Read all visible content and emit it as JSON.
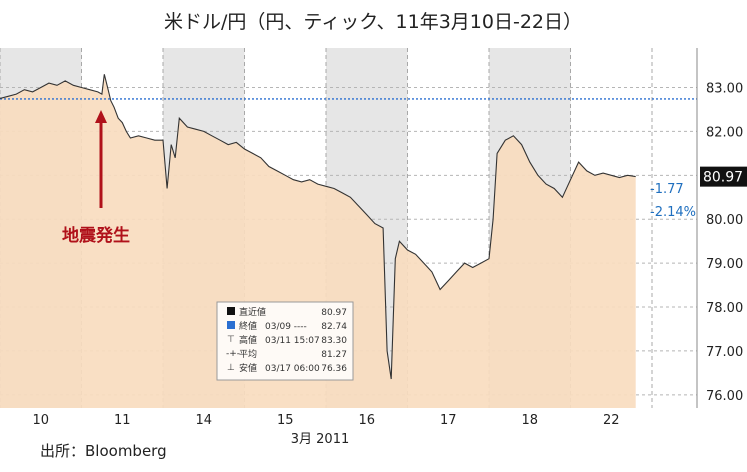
{
  "chart_data": {
    "type": "line",
    "title": "米ドル/円（円、ティック、11年3月10日-22日）",
    "xlabel": "3月 2011",
    "source": "出所：Bloomberg",
    "x_categories": [
      "10",
      "11",
      "14",
      "15",
      "16",
      "17",
      "18",
      "22"
    ],
    "ylim": [
      75.7,
      83.9
    ],
    "yticks": [
      "83.00",
      "82.00",
      "81.00",
      "80.00",
      "79.00",
      "78.00",
      "77.00",
      "76.00"
    ],
    "reference_line": {
      "label": "終値 03/09",
      "value": 82.74
    },
    "last_value_label": "80.97",
    "change_labels": [
      "-1.77",
      "-2.14%"
    ],
    "annotation": "地震発生",
    "series": [
      {
        "values": [
          [
            0.0,
            82.75
          ],
          [
            0.1,
            82.8
          ],
          [
            0.2,
            82.85
          ],
          [
            0.3,
            82.95
          ],
          [
            0.4,
            82.9
          ],
          [
            0.5,
            83.0
          ],
          [
            0.6,
            83.1
          ],
          [
            0.7,
            83.05
          ],
          [
            0.8,
            83.15
          ],
          [
            0.9,
            83.05
          ],
          [
            1.0,
            83.0
          ],
          [
            1.1,
            82.95
          ],
          [
            1.2,
            82.9
          ],
          [
            1.25,
            82.85
          ],
          [
            1.28,
            83.3
          ],
          [
            1.32,
            83.0
          ],
          [
            1.36,
            82.7
          ],
          [
            1.4,
            82.55
          ],
          [
            1.45,
            82.3
          ],
          [
            1.5,
            82.2
          ],
          [
            1.55,
            82.0
          ],
          [
            1.6,
            81.85
          ],
          [
            1.7,
            81.9
          ],
          [
            1.8,
            81.85
          ],
          [
            1.9,
            81.8
          ],
          [
            2.0,
            81.8
          ],
          [
            2.05,
            80.7
          ],
          [
            2.1,
            81.7
          ],
          [
            2.15,
            81.4
          ],
          [
            2.2,
            82.3
          ],
          [
            2.3,
            82.1
          ],
          [
            2.4,
            82.05
          ],
          [
            2.5,
            82.0
          ],
          [
            2.6,
            81.9
          ],
          [
            2.7,
            81.8
          ],
          [
            2.8,
            81.7
          ],
          [
            2.9,
            81.75
          ],
          [
            3.0,
            81.6
          ],
          [
            3.1,
            81.5
          ],
          [
            3.2,
            81.4
          ],
          [
            3.3,
            81.2
          ],
          [
            3.4,
            81.1
          ],
          [
            3.5,
            81.0
          ],
          [
            3.6,
            80.9
          ],
          [
            3.7,
            80.85
          ],
          [
            3.8,
            80.9
          ],
          [
            3.9,
            80.8
          ],
          [
            4.0,
            80.75
          ],
          [
            4.1,
            80.7
          ],
          [
            4.2,
            80.6
          ],
          [
            4.3,
            80.5
          ],
          [
            4.4,
            80.3
          ],
          [
            4.5,
            80.1
          ],
          [
            4.6,
            79.9
          ],
          [
            4.7,
            79.8
          ],
          [
            4.75,
            77.0
          ],
          [
            4.8,
            76.36
          ],
          [
            4.85,
            79.1
          ],
          [
            4.9,
            79.5
          ],
          [
            5.0,
            79.3
          ],
          [
            5.1,
            79.2
          ],
          [
            5.2,
            79.0
          ],
          [
            5.3,
            78.8
          ],
          [
            5.4,
            78.4
          ],
          [
            5.5,
            78.6
          ],
          [
            5.6,
            78.8
          ],
          [
            5.7,
            79.0
          ],
          [
            5.8,
            78.9
          ],
          [
            5.9,
            79.0
          ],
          [
            6.0,
            79.1
          ],
          [
            6.05,
            80.0
          ],
          [
            6.1,
            81.5
          ],
          [
            6.2,
            81.8
          ],
          [
            6.3,
            81.9
          ],
          [
            6.4,
            81.7
          ],
          [
            6.5,
            81.3
          ],
          [
            6.6,
            81.0
          ],
          [
            6.7,
            80.8
          ],
          [
            6.8,
            80.7
          ],
          [
            6.9,
            80.5
          ],
          [
            7.0,
            80.9
          ],
          [
            7.1,
            81.3
          ],
          [
            7.2,
            81.1
          ],
          [
            7.3,
            81.0
          ],
          [
            7.4,
            81.05
          ],
          [
            7.5,
            81.0
          ],
          [
            7.6,
            80.95
          ],
          [
            7.7,
            81.0
          ],
          [
            7.8,
            80.97
          ]
        ]
      }
    ]
  },
  "legend": {
    "rows": [
      {
        "label": "直近値",
        "detail": "",
        "value": "80.97"
      },
      {
        "label": "終値",
        "detail": "03/09 ----",
        "value": "82.74"
      },
      {
        "label": "高値",
        "detail": "03/11 15:07",
        "value": "83.30"
      },
      {
        "label": "平均",
        "detail": "",
        "value": "81.27"
      },
      {
        "label": "安値",
        "detail": "03/17 06:00",
        "value": "76.36"
      }
    ]
  },
  "colors": {
    "fill": "#f8dcbf",
    "line": "#333333",
    "shade": "#e6e6e6",
    "reference": "#2a6fd1",
    "quake": "#b0111a",
    "last_box": "#111111"
  }
}
